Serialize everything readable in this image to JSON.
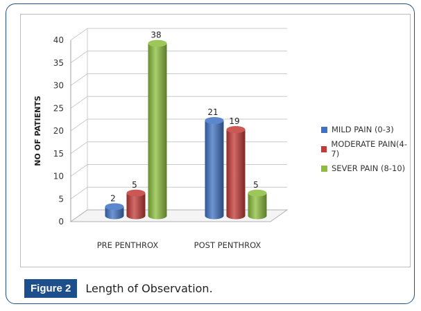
{
  "chart_data": {
    "type": "bar",
    "categories": [
      "PRE PENTHROX",
      "POST PENTHROX"
    ],
    "series": [
      {
        "name": "MILD PAIN (0-3)",
        "values": [
          2,
          21
        ],
        "color": "#3f72c3"
      },
      {
        "name": "MODERATE PAIN(4-7)",
        "values": [
          5,
          19
        ],
        "color": "#c23a37"
      },
      {
        "name": "SEVER PAIN (8-10)",
        "values": [
          38,
          5
        ],
        "color": "#8cbd3c"
      }
    ],
    "ylabel": "NO OF PATIENTS",
    "xlabel": "",
    "ylim": [
      0,
      40
    ],
    "yticks": [
      0,
      5,
      10,
      15,
      20,
      25,
      30,
      35,
      40
    ],
    "grid": true,
    "legend_position": "right",
    "style": "3d-cylinder"
  },
  "caption": {
    "label": "Figure 2",
    "text": "Length of Observation."
  }
}
